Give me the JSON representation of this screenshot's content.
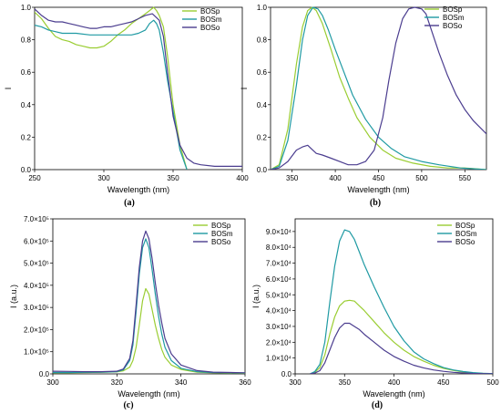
{
  "colors": {
    "BOSp": "#9acd32",
    "BOSm": "#1f9aa3",
    "BOSo": "#4b3d8f"
  },
  "chart_data": [
    {
      "panel": "(a)",
      "type": "line",
      "xlabel": "Wavelength (nm)",
      "ylabel": "I",
      "xlim": [
        250,
        400
      ],
      "ylim": [
        0,
        1.0
      ],
      "xticks": [
        "250",
        "300",
        "350",
        "400"
      ],
      "xtick_values": [
        250,
        300,
        350,
        400
      ],
      "yticks": [
        "0.0",
        "0.2",
        "0.4",
        "0.6",
        "0.8",
        "1.0"
      ],
      "ytick_values": [
        0,
        0.2,
        0.4,
        0.6,
        0.8,
        1.0
      ],
      "legend": [
        "BOSp",
        "BOSm",
        "BOSo"
      ],
      "series": [
        {
          "name": "BOSp",
          "x": [
            250,
            255,
            260,
            265,
            270,
            275,
            280,
            285,
            290,
            295,
            300,
            305,
            310,
            315,
            320,
            325,
            330,
            333,
            336,
            338,
            340,
            343,
            346,
            350,
            355,
            360
          ],
          "y": [
            0.97,
            0.93,
            0.87,
            0.82,
            0.8,
            0.79,
            0.77,
            0.76,
            0.75,
            0.75,
            0.76,
            0.79,
            0.83,
            0.86,
            0.9,
            0.93,
            0.96,
            0.98,
            1.0,
            0.98,
            0.95,
            0.88,
            0.7,
            0.4,
            0.15,
            0.0
          ]
        },
        {
          "name": "BOSm",
          "x": [
            250,
            255,
            260,
            265,
            270,
            280,
            290,
            300,
            310,
            320,
            325,
            330,
            333,
            336,
            338,
            340,
            343,
            346,
            350,
            355,
            360
          ],
          "y": [
            0.89,
            0.88,
            0.86,
            0.85,
            0.84,
            0.84,
            0.83,
            0.83,
            0.83,
            0.83,
            0.84,
            0.86,
            0.9,
            0.92,
            0.9,
            0.86,
            0.72,
            0.55,
            0.36,
            0.12,
            0.0
          ]
        },
        {
          "name": "BOSo",
          "x": [
            250,
            255,
            260,
            265,
            270,
            275,
            280,
            285,
            290,
            295,
            300,
            305,
            310,
            315,
            320,
            325,
            330,
            335,
            340,
            343,
            346,
            350,
            355,
            360,
            365,
            370,
            380,
            390,
            400
          ],
          "y": [
            0.99,
            0.95,
            0.92,
            0.91,
            0.91,
            0.9,
            0.89,
            0.88,
            0.87,
            0.87,
            0.88,
            0.88,
            0.89,
            0.9,
            0.91,
            0.93,
            0.95,
            0.96,
            0.92,
            0.82,
            0.6,
            0.33,
            0.15,
            0.07,
            0.04,
            0.03,
            0.02,
            0.02,
            0.02
          ]
        }
      ]
    },
    {
      "panel": "(b)",
      "type": "line",
      "xlabel": "Wavelength (nm)",
      "ylabel": "I",
      "xlim": [
        325,
        575
      ],
      "ylim": [
        0,
        1.0
      ],
      "xticks": [
        "350",
        "400",
        "450",
        "500",
        "550"
      ],
      "xtick_values": [
        350,
        400,
        450,
        500,
        550
      ],
      "yticks": [
        "0.0",
        "0.2",
        "0.4",
        "0.6",
        "0.8",
        "1.0"
      ],
      "ytick_values": [
        0,
        0.2,
        0.4,
        0.6,
        0.8,
        1.0
      ],
      "legend": [
        "BOSp",
        "BOSm",
        "BOSo"
      ],
      "series": [
        {
          "name": "BOSp",
          "x": [
            325,
            335,
            345,
            355,
            362,
            368,
            373,
            378,
            385,
            395,
            405,
            415,
            425,
            440,
            455,
            470,
            490,
            510,
            530,
            550,
            575
          ],
          "y": [
            0.0,
            0.03,
            0.25,
            0.65,
            0.88,
            0.98,
            1.0,
            0.98,
            0.9,
            0.74,
            0.57,
            0.44,
            0.32,
            0.2,
            0.12,
            0.07,
            0.04,
            0.02,
            0.01,
            0.01,
            0.0
          ]
        },
        {
          "name": "BOSm",
          "x": [
            325,
            335,
            345,
            355,
            362,
            368,
            374,
            380,
            385,
            392,
            400,
            410,
            420,
            435,
            450,
            465,
            480,
            500,
            520,
            545,
            575
          ],
          "y": [
            0.0,
            0.02,
            0.18,
            0.52,
            0.8,
            0.95,
            1.0,
            0.99,
            0.95,
            0.86,
            0.74,
            0.6,
            0.46,
            0.31,
            0.2,
            0.13,
            0.08,
            0.05,
            0.03,
            0.01,
            0.0
          ]
        },
        {
          "name": "BOSo",
          "x": [
            325,
            335,
            345,
            355,
            362,
            368,
            372,
            378,
            385,
            395,
            405,
            415,
            425,
            435,
            445,
            455,
            462,
            470,
            478,
            485,
            492,
            500,
            505,
            510,
            520,
            530,
            540,
            550,
            560,
            575
          ],
          "y": [
            0.0,
            0.01,
            0.05,
            0.12,
            0.14,
            0.15,
            0.13,
            0.1,
            0.09,
            0.07,
            0.05,
            0.03,
            0.03,
            0.05,
            0.12,
            0.32,
            0.55,
            0.78,
            0.93,
            0.99,
            1.0,
            0.99,
            0.96,
            0.88,
            0.72,
            0.58,
            0.46,
            0.37,
            0.3,
            0.22
          ]
        }
      ]
    },
    {
      "panel": "(c)",
      "type": "line",
      "xlabel": "Wavelength (nm)",
      "ylabel": "I (a.u.)",
      "xlim": [
        300,
        360
      ],
      "ylim": [
        0,
        700000
      ],
      "xticks": [
        "300",
        "320",
        "340",
        "360"
      ],
      "xtick_values": [
        300,
        320,
        340,
        360
      ],
      "yticks": [
        "0.0",
        "1.0×10⁵",
        "2.0×10⁵",
        "3.0×10⁵",
        "4.0×10⁵",
        "5.0×10⁵",
        "6.0×10⁵",
        "7.0×10⁵"
      ],
      "ytick_values": [
        0,
        100000,
        200000,
        300000,
        400000,
        500000,
        600000,
        700000
      ],
      "legend": [
        "BOSp",
        "BOSm",
        "BOSo"
      ],
      "series": [
        {
          "name": "BOSp",
          "x": [
            300,
            305,
            310,
            315,
            320,
            322,
            324,
            325,
            326,
            327,
            328,
            329,
            330,
            331,
            332,
            333,
            334,
            335,
            337,
            340,
            345,
            350,
            360
          ],
          "y": [
            5000,
            5000,
            6000,
            7000,
            9000,
            14000,
            30000,
            60000,
            120000,
            220000,
            330000,
            385000,
            360000,
            290000,
            220000,
            160000,
            110000,
            75000,
            40000,
            20000,
            8000,
            5000,
            3000
          ]
        },
        {
          "name": "BOSm",
          "x": [
            300,
            305,
            310,
            315,
            320,
            322,
            324,
            325,
            326,
            327,
            328,
            329,
            330,
            331,
            332,
            333,
            334,
            335,
            337,
            340,
            345,
            350,
            360
          ],
          "y": [
            6000,
            6000,
            7000,
            8000,
            10000,
            18000,
            60000,
            130000,
            280000,
            450000,
            570000,
            610000,
            570000,
            470000,
            360000,
            260000,
            180000,
            120000,
            60000,
            25000,
            10000,
            6000,
            4000
          ]
        },
        {
          "name": "BOSo",
          "x": [
            300,
            305,
            310,
            315,
            320,
            322,
            324,
            325,
            326,
            327,
            328,
            329,
            330,
            331,
            332,
            333,
            334,
            335,
            337,
            340,
            345,
            350,
            360
          ],
          "y": [
            12000,
            11000,
            10000,
            10000,
            12000,
            22000,
            70000,
            150000,
            310000,
            480000,
            600000,
            645000,
            610000,
            520000,
            410000,
            310000,
            230000,
            160000,
            90000,
            40000,
            15000,
            8000,
            5000
          ]
        }
      ]
    },
    {
      "panel": "(d)",
      "type": "line",
      "xlabel": "Wavelength (nm)",
      "ylabel": "I (a.u.)",
      "xlim": [
        300,
        500
      ],
      "ylim": [
        0,
        98000
      ],
      "xticks": [
        "300",
        "350",
        "400",
        "450",
        "500"
      ],
      "xtick_values": [
        300,
        350,
        400,
        450,
        500
      ],
      "yticks": [
        "0.0",
        "1.0×10⁴",
        "2.0×10⁴",
        "3.0×10⁴",
        "4.0×10⁴",
        "5.0×10⁴",
        "6.0×10⁴",
        "7.0×10⁴",
        "8.0×10⁴",
        "9.0×10⁴"
      ],
      "ytick_values": [
        0,
        10000,
        20000,
        30000,
        40000,
        50000,
        60000,
        70000,
        80000,
        90000
      ],
      "legend": [
        "BOSp",
        "BOSm",
        "BOSo"
      ],
      "series": [
        {
          "name": "BOSp",
          "x": [
            315,
            320,
            325,
            330,
            335,
            340,
            345,
            350,
            355,
            360,
            365,
            370,
            380,
            390,
            400,
            410,
            420,
            430,
            440,
            450,
            460,
            470,
            480,
            490,
            500
          ],
          "y": [
            0,
            1000,
            4000,
            12000,
            25000,
            36000,
            43000,
            46000,
            46500,
            46000,
            43000,
            40000,
            33000,
            26000,
            20000,
            15000,
            11000,
            8000,
            5500,
            3500,
            2200,
            1200,
            600,
            300,
            100
          ]
        },
        {
          "name": "BOSm",
          "x": [
            315,
            320,
            325,
            330,
            335,
            340,
            345,
            350,
            355,
            360,
            365,
            370,
            380,
            390,
            400,
            410,
            420,
            430,
            440,
            450,
            460,
            470,
            480,
            490,
            500
          ],
          "y": [
            0,
            1500,
            6000,
            20000,
            45000,
            68000,
            84000,
            91000,
            90000,
            85000,
            77000,
            69000,
            55000,
            42000,
            30000,
            21000,
            14000,
            9500,
            6500,
            4000,
            2500,
            1500,
            800,
            400,
            200
          ]
        },
        {
          "name": "BOSo",
          "x": [
            315,
            320,
            325,
            330,
            335,
            340,
            345,
            350,
            355,
            360,
            365,
            370,
            380,
            390,
            400,
            410,
            420,
            430,
            440,
            450,
            460,
            470,
            480,
            490,
            500
          ],
          "y": [
            0,
            500,
            2000,
            7000,
            15000,
            23000,
            29000,
            32000,
            32000,
            30000,
            28000,
            25000,
            20000,
            15000,
            11000,
            8000,
            5500,
            3800,
            2500,
            1600,
            1000,
            600,
            300,
            150,
            50
          ]
        }
      ]
    }
  ]
}
